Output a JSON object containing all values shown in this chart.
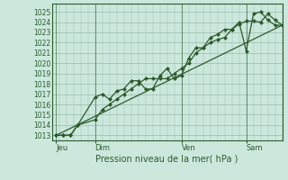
{
  "xlabel": "Pression niveau de la mer( hPa )",
  "bg_color": "#cce8dd",
  "grid_minor_color": "#b8d8cc",
  "grid_major_color": "#99bbaa",
  "line_color": "#2d5a2d",
  "ylim": [
    1012.5,
    1025.8
  ],
  "yticks": [
    1013,
    1014,
    1015,
    1016,
    1017,
    1018,
    1019,
    1020,
    1021,
    1022,
    1023,
    1024,
    1025
  ],
  "xlim": [
    0,
    16
  ],
  "day_positions": [
    0.3,
    3.0,
    9.0,
    13.5
  ],
  "day_labels": [
    "Jeu",
    "Dim",
    "Ven",
    "Sam"
  ],
  "vline_positions": [
    0.3,
    3.0,
    9.0,
    13.5
  ],
  "series1_x": [
    0.3,
    0.8,
    1.3,
    1.8,
    3.0,
    3.5,
    4.0,
    4.5,
    5.0,
    5.5,
    6.0,
    6.5,
    7.0,
    7.5,
    8.0,
    8.5,
    9.0,
    9.5,
    10.0,
    10.5,
    11.0,
    11.5,
    12.0,
    12.5,
    13.0,
    13.5,
    14.0,
    14.5,
    15.0,
    15.5,
    16.0
  ],
  "series1_y": [
    1013.0,
    1013.0,
    1013.0,
    1014.0,
    1016.7,
    1017.0,
    1016.5,
    1017.3,
    1017.5,
    1018.3,
    1018.3,
    1017.5,
    1017.5,
    1018.8,
    1019.5,
    1018.5,
    1018.8,
    1020.5,
    1021.5,
    1021.5,
    1022.5,
    1022.8,
    1023.3,
    1023.3,
    1024.0,
    1021.2,
    1024.8,
    1025.0,
    1024.2,
    1023.7,
    1023.7
  ],
  "series2_x": [
    0.3,
    0.8,
    1.3,
    1.8,
    3.0,
    3.5,
    4.0,
    4.5,
    5.0,
    5.5,
    6.0,
    6.5,
    7.0,
    7.5,
    8.0,
    8.5,
    9.0,
    9.5,
    10.0,
    10.5,
    11.0,
    11.5,
    12.0,
    12.5,
    13.0,
    13.5,
    14.0,
    14.5,
    15.0,
    15.5,
    16.0
  ],
  "series2_y": [
    1013.0,
    1013.0,
    1013.0,
    1014.0,
    1014.5,
    1015.5,
    1016.0,
    1016.5,
    1017.0,
    1017.5,
    1018.0,
    1018.5,
    1018.5,
    1018.5,
    1018.5,
    1019.0,
    1019.5,
    1020.0,
    1021.0,
    1021.5,
    1022.0,
    1022.3,
    1022.5,
    1023.3,
    1023.8,
    1024.1,
    1024.1,
    1024.0,
    1024.8,
    1024.2,
    1023.7
  ],
  "trend_x": [
    0.3,
    16.0
  ],
  "trend_y": [
    1013.0,
    1023.7
  ],
  "marker_size": 2.5,
  "line_width": 0.9
}
